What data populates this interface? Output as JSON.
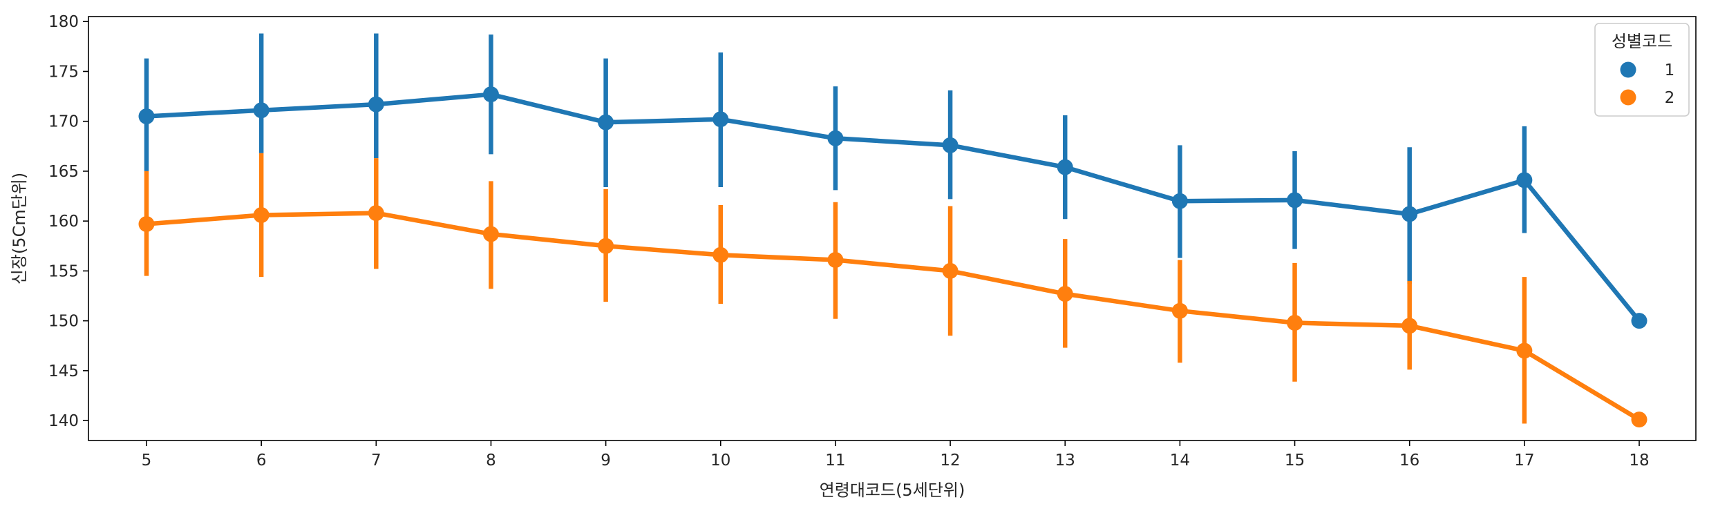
{
  "chart_data": {
    "type": "line",
    "title": "",
    "xlabel": "연령대코드(5세단위)",
    "ylabel": "신장(5Cm단위)",
    "categories": [
      "5",
      "6",
      "7",
      "8",
      "9",
      "10",
      "11",
      "12",
      "13",
      "14",
      "15",
      "16",
      "17",
      "18"
    ],
    "ylim": [
      138,
      180.5
    ],
    "yticks": [
      140,
      145,
      150,
      155,
      160,
      165,
      170,
      175,
      180
    ],
    "grid": false,
    "legend": {
      "title": "성별코드",
      "placement": "top-right"
    },
    "series": [
      {
        "name": "1",
        "color": "#1f77b4",
        "values": [
          170.5,
          171.1,
          171.7,
          172.7,
          169.9,
          170.2,
          168.3,
          167.6,
          165.4,
          162.0,
          162.1,
          160.7,
          164.1,
          150.0
        ],
        "ci_low": [
          165.0,
          166.8,
          166.3,
          166.7,
          163.4,
          163.4,
          163.1,
          162.2,
          160.2,
          156.3,
          157.2,
          153.7,
          158.8,
          150.0
        ],
        "ci_high": [
          176.3,
          178.8,
          178.8,
          178.7,
          176.3,
          176.9,
          173.5,
          173.1,
          170.6,
          167.6,
          167.0,
          167.4,
          169.5,
          150.0
        ]
      },
      {
        "name": "2",
        "color": "#ff7f0e",
        "values": [
          159.7,
          160.6,
          160.8,
          158.7,
          157.5,
          156.6,
          156.1,
          155.0,
          152.7,
          151.0,
          149.8,
          149.5,
          147.0,
          140.1
        ],
        "ci_low": [
          154.5,
          154.4,
          155.2,
          153.2,
          151.9,
          151.7,
          150.2,
          148.5,
          147.3,
          145.8,
          143.9,
          145.1,
          139.7,
          140.1
        ],
        "ci_high": [
          165.0,
          166.8,
          166.3,
          164.0,
          163.2,
          161.6,
          161.9,
          161.5,
          158.2,
          156.1,
          155.8,
          154.0,
          154.4,
          140.1
        ]
      }
    ]
  }
}
